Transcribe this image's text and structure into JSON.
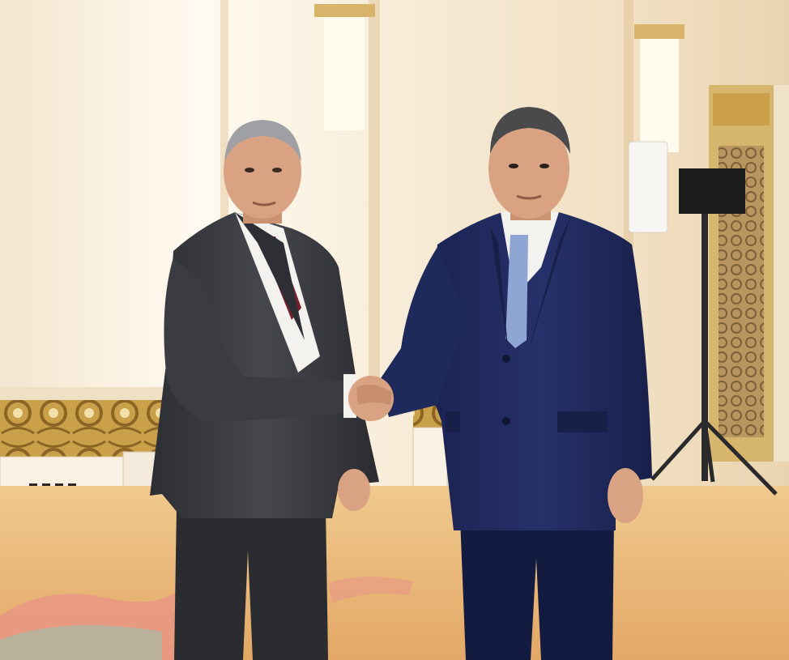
{
  "scene": {
    "kind": "photograph",
    "subjects": [
      "man-left-grey-suit",
      "man-right-navy-suit"
    ],
    "colors": {
      "wall_light": "#f6ecd9",
      "wall_glow": "#fffaf0",
      "wall_shadow": "#e9d6b6",
      "gold": "#c79a3c",
      "gold_dark": "#8c6524",
      "panel_white": "#f8f1e4",
      "carpet": "#e8b571",
      "carpet_light": "#f0c98e",
      "carpet_pattern_pink": "#e98f8a",
      "carpet_pattern_teal": "#8cc9b8",
      "grey_suit": "#3b3d42",
      "grey_suit_dark": "#26282c",
      "navy_suit": "#1f2a5c",
      "navy_suit_dark": "#141b40",
      "shirt_white": "#f4f2ee",
      "tie_red": "#7a1e2b",
      "tie_blue": "#8fa6d4",
      "skin": "#d9a383",
      "skin_shadow": "#b7805f",
      "hair_grey": "#9ea0a3",
      "hair_dark": "#4a4a4c",
      "speaker_black": "#1b1b1d"
    }
  }
}
